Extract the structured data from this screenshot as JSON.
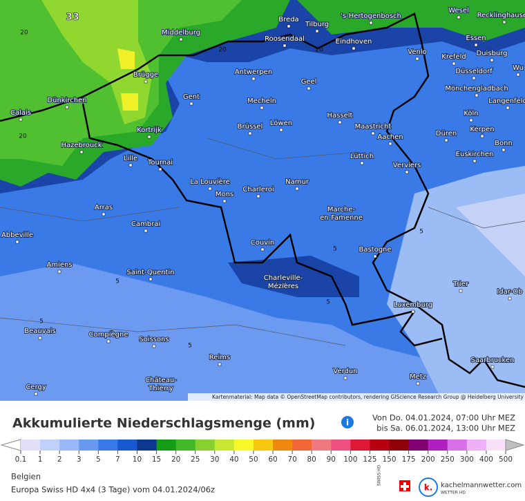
{
  "map": {
    "cities": [
      [
        "Breda"
      ],
      [
        "Tilburg"
      ],
      [
        "'s-Hertogenbosch"
      ],
      [
        "Wesel"
      ],
      [
        "Recklinghausen"
      ],
      [
        "Middelburg"
      ],
      [
        "Roosendaal"
      ],
      [
        "Eindhoven"
      ],
      [
        "Venlo"
      ],
      [
        "Essen"
      ],
      [
        "Krefeld"
      ],
      [
        "Duisburg"
      ],
      [
        "Wu"
      ],
      [
        "Brügge"
      ],
      [
        "Antwerpen"
      ],
      [
        "Geel"
      ],
      [
        "Düsseldorf"
      ],
      [
        "Mönchengladbach"
      ],
      [
        "Gent"
      ],
      [
        "Mecheln"
      ],
      [
        "Langenfeld"
      ],
      [
        "Dünkirchen"
      ],
      [
        "Calais"
      ],
      [
        "Hasselt"
      ],
      [
        "Köln"
      ],
      [
        "Brüssel"
      ],
      [
        "Löwen"
      ],
      [
        "Maastricht"
      ],
      [
        "Kortrijk"
      ],
      [
        "Kerpen"
      ],
      [
        "Düren"
      ],
      [
        "Aachen"
      ],
      [
        "Hazebrouck"
      ],
      [
        "Bonn"
      ],
      [
        "Euskirchen"
      ],
      [
        "Lille"
      ],
      [
        "Tournai"
      ],
      [
        "Lüttich"
      ],
      [
        "Verviers"
      ],
      [
        "La Louvière"
      ],
      [
        "Namur"
      ],
      [
        "Charleroi"
      ],
      [
        "Mons"
      ],
      [
        "Arras"
      ],
      [
        "Marche-",
        "en-Famenne"
      ],
      [
        "Cambrai"
      ],
      [
        "Abbeville"
      ],
      [
        "Couvin"
      ],
      [
        "Bastogne"
      ],
      [
        "Amiens"
      ],
      [
        "Saint-Quentin"
      ],
      [
        "Charleville-",
        "Mézières"
      ],
      [
        "Trier"
      ],
      [
        "Idar-Ob"
      ],
      [
        "Luxemburg"
      ],
      [
        "Beauvais"
      ],
      [
        "Compiègne"
      ],
      [
        "Soissons"
      ],
      [
        "Reims"
      ],
      [
        "Saarbrucken"
      ],
      [
        "Verdun"
      ],
      [
        "Metz"
      ],
      [
        "Château-",
        "Thierry"
      ],
      [
        "Cergy"
      ]
    ],
    "contour_labels": [
      "33",
      "20",
      "20",
      "20",
      "20",
      "5",
      "5",
      "5",
      "5",
      "5",
      "5"
    ],
    "attribution": "Kartenmaterial: Map data © OpenStreetMap contributors, rendering GIScience Research Group @ Heidelberg University"
  },
  "panel": {
    "title": "Akkumulierte Niederschlagsmenge (mm)",
    "info": "i",
    "from": "Von Do. 04.01.2024, 07:00 Uhr MEZ",
    "to": "bis Sa. 06.01.2024, 13:00 Uhr MEZ",
    "legend": {
      "values": [
        0.1,
        1,
        2,
        3,
        5,
        7,
        10,
        15,
        20,
        25,
        30,
        40,
        50,
        60,
        70,
        80,
        90,
        100,
        125,
        150,
        175,
        200,
        250,
        300,
        400,
        500
      ],
      "colors": [
        "#e2e0f8",
        "#c0d0f8",
        "#98b8f8",
        "#6898f0",
        "#3878e8",
        "#1858d0",
        "#0c3890",
        "#149c14",
        "#40b828",
        "#88d030",
        "#c8e830",
        "#f8f828",
        "#f8c810",
        "#f08810",
        "#f06838",
        "#f07880",
        "#f05080",
        "#e01838",
        "#b80010",
        "#900008",
        "#800070",
        "#b020c0",
        "#d870e8",
        "#f0b0f8",
        "#f8e0f8"
      ],
      "under_color": "#ffffff",
      "over_color": "#c0c0c0"
    },
    "region": "Belgien",
    "model": "Europa Swiss HD 4x4 (3 Tage) vom 04.01.2024/06z",
    "swiss": "SWISS HD",
    "brand": "kachelmannwetter.com",
    "brand_sub": "WETTER HD",
    "logo": "k."
  }
}
